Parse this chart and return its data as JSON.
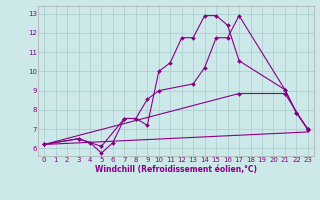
{
  "title": "",
  "xlabel": "Windchill (Refroidissement éolien,°C)",
  "ylabel": "",
  "background_color": "#cce8e8",
  "line_color": "#880088",
  "grid_color": "#aacccc",
  "xlim": [
    -0.5,
    23.5
  ],
  "ylim": [
    5.6,
    13.4
  ],
  "xticks": [
    0,
    1,
    2,
    3,
    4,
    5,
    6,
    7,
    8,
    9,
    10,
    11,
    12,
    13,
    14,
    15,
    16,
    17,
    18,
    19,
    20,
    21,
    22,
    23
  ],
  "yticks": [
    6,
    7,
    8,
    9,
    10,
    11,
    12,
    13
  ],
  "series": [
    {
      "x": [
        0,
        3,
        4,
        5,
        6,
        7,
        8,
        9,
        10,
        11,
        12,
        13,
        14,
        15,
        16,
        17,
        21,
        22,
        23
      ],
      "y": [
        6.2,
        6.5,
        6.3,
        5.75,
        6.3,
        7.55,
        7.55,
        7.2,
        10.0,
        10.45,
        11.75,
        11.75,
        12.9,
        12.9,
        12.4,
        10.55,
        9.05,
        7.85,
        7.0
      ],
      "has_markers": true
    },
    {
      "x": [
        0,
        3,
        5,
        7,
        8,
        9,
        10,
        13,
        14,
        15,
        16,
        17,
        21,
        22,
        23
      ],
      "y": [
        6.2,
        6.5,
        6.1,
        7.55,
        7.55,
        8.55,
        9.0,
        9.35,
        10.2,
        11.75,
        11.75,
        12.9,
        9.05,
        7.85,
        7.0
      ],
      "has_markers": true
    },
    {
      "x": [
        0,
        17,
        21,
        23
      ],
      "y": [
        6.2,
        8.85,
        8.85,
        6.95
      ],
      "has_markers": true
    },
    {
      "x": [
        0,
        23
      ],
      "y": [
        6.2,
        6.85
      ],
      "has_markers": false
    }
  ]
}
